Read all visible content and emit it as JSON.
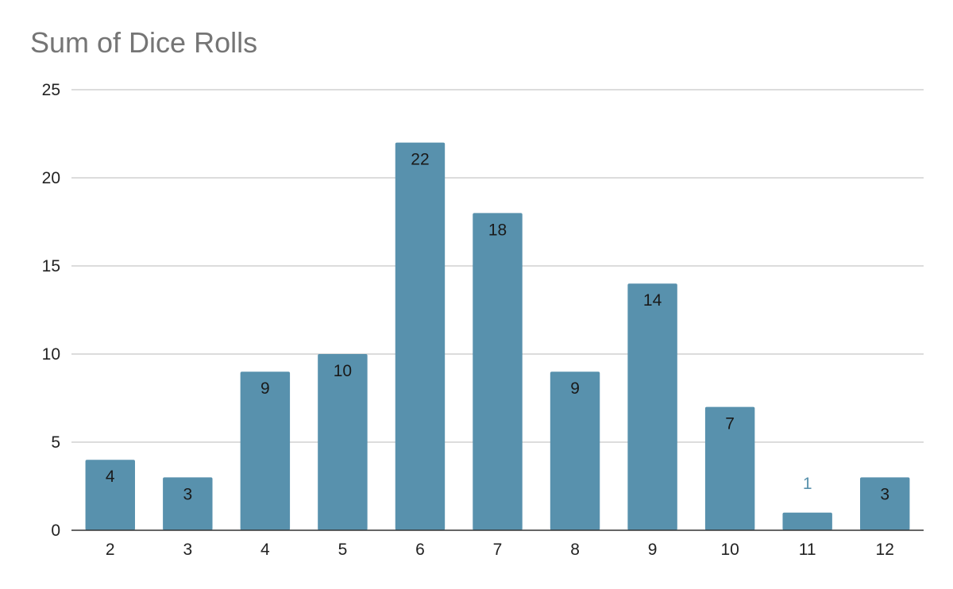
{
  "chart_data": {
    "type": "bar",
    "title": "Sum of Dice Rolls",
    "xlabel": "",
    "ylabel": "",
    "categories": [
      "2",
      "3",
      "4",
      "5",
      "6",
      "7",
      "8",
      "9",
      "10",
      "11",
      "12"
    ],
    "values": [
      4,
      3,
      9,
      10,
      22,
      18,
      9,
      14,
      7,
      1,
      3
    ],
    "ylim": [
      0,
      25
    ],
    "yticks": [
      0,
      5,
      10,
      15,
      20,
      25
    ],
    "grid": true,
    "legend": "none",
    "bar_color": "#5891ad",
    "data_label_color_inside": "#1a1a1a",
    "data_label_color_outside": "#5891ad",
    "gridline_color": "#c8c8c8",
    "axis_color": "#333333"
  }
}
